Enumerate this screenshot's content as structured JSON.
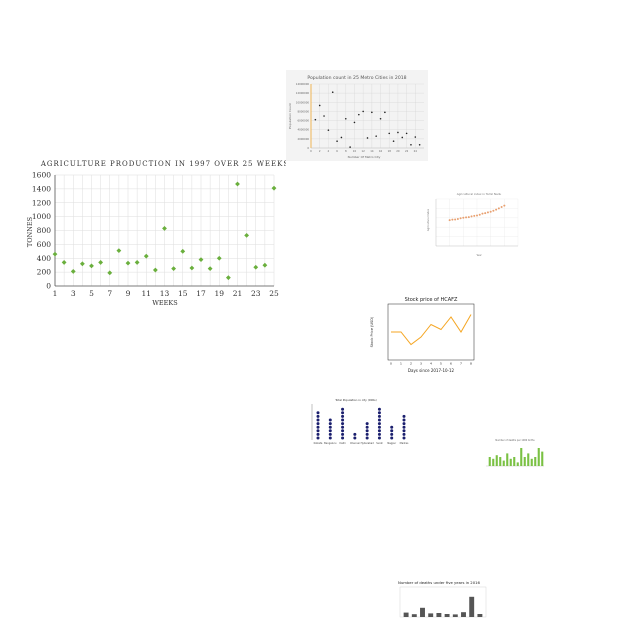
{
  "colors": {
    "agri_marker": "#6aaf3d",
    "population_axis": "#f0a830",
    "population_card": "#f2f2f2",
    "scatter_dots": "#e8a070",
    "stock_line": "#f5a623",
    "dot_plot": "#1b1f6e",
    "green_bars": "#7ac143",
    "gray_bars": "#555555"
  },
  "chart_data": [
    {
      "id": "agriculture",
      "type": "scatter",
      "title": "AGRICULTURE PRODUCTION IN 1997 OVER 25 WEEKS",
      "xlabel": "WEEKS",
      "ylabel": "TONNES",
      "xlim": [
        1,
        25
      ],
      "ylim": [
        0,
        1600
      ],
      "xticks": [
        1,
        3,
        5,
        7,
        9,
        11,
        13,
        15,
        17,
        19,
        21,
        23,
        25
      ],
      "yticks": [
        0,
        200,
        400,
        600,
        800,
        1000,
        1200,
        1400,
        1600
      ],
      "x": [
        1,
        2,
        3,
        4,
        5,
        6,
        7,
        8,
        9,
        10,
        11,
        12,
        13,
        14,
        15,
        16,
        17,
        18,
        19,
        20,
        21,
        22,
        23,
        24,
        25
      ],
      "y": [
        460,
        340,
        210,
        320,
        290,
        340,
        190,
        510,
        330,
        340,
        430,
        230,
        830,
        250,
        500,
        260,
        380,
        250,
        400,
        120,
        1470,
        730,
        270,
        300,
        1410
      ],
      "grid": true
    },
    {
      "id": "population",
      "type": "scatter",
      "title": "Population  count  in 25 Metro Cities in 2018",
      "xlabel": "Number Of Metro City",
      "ylabel": "Population Count",
      "xlim": [
        0,
        26
      ],
      "ylim": [
        0,
        14000000
      ],
      "xticks": [
        0,
        2,
        4,
        6,
        8,
        10,
        12,
        14,
        16,
        18,
        20,
        22,
        24
      ],
      "yticks": [
        0,
        2000000,
        4000000,
        6000000,
        8000000,
        10000000,
        12000000,
        14000000
      ],
      "x": [
        1,
        2,
        3,
        4,
        5,
        6,
        7,
        8,
        9,
        10,
        11,
        12,
        13,
        14,
        15,
        16,
        17,
        18,
        19,
        20,
        21,
        22,
        23,
        24,
        25
      ],
      "y": [
        6200000,
        9300000,
        7000000,
        3900000,
        12200000,
        1500000,
        2300000,
        6400000,
        200000,
        5600000,
        7300000,
        8000000,
        2200000,
        7800000,
        2600000,
        6400000,
        7800000,
        3200000,
        1500000,
        3400000,
        2300000,
        3200000,
        700000,
        2400000,
        700000
      ],
      "grid": true
    },
    {
      "id": "agri_growth",
      "type": "scatter",
      "title": "Agricultural index in Tamil Nadu",
      "xlabel": "Year",
      "ylabel": "Agricultural index",
      "xlim": [
        1990,
        2020
      ],
      "ylim": [
        0,
        200
      ],
      "x": [
        1995,
        1996,
        1997,
        1998,
        1999,
        2000,
        2001,
        2002,
        2003,
        2004,
        2005,
        2006,
        2007,
        2008,
        2009,
        2010,
        2011,
        2012,
        2013,
        2014,
        2015
      ],
      "y": [
        110,
        112,
        113,
        115,
        118,
        120,
        122,
        123,
        126,
        128,
        130,
        133,
        138,
        140,
        143,
        146,
        150,
        155,
        160,
        166,
        172
      ],
      "grid": true
    },
    {
      "id": "stock",
      "type": "line",
      "title": "Stock price of HCAFZ",
      "xlabel": "Days since 2017-10-12",
      "ylabel": "Stock Price (USD)",
      "xlim": [
        0,
        8
      ],
      "ylim": [
        22.9,
        23.1
      ],
      "x": [
        0,
        1,
        2,
        3,
        4,
        5,
        6,
        7,
        8
      ],
      "y": [
        23.0,
        23.0,
        22.95,
        22.98,
        23.03,
        23.01,
        23.06,
        23.0,
        23.07
      ],
      "grid": false
    },
    {
      "id": "dot_plot",
      "type": "scatter",
      "title": "Total Population in city (000s)",
      "categories": [
        "Kolkata",
        "Bengaluru",
        "Delhi",
        "Chennai",
        "Hyderabad",
        "Surat",
        "Nagpur",
        "Madras"
      ],
      "values": [
        8,
        6,
        9,
        2,
        5,
        9,
        4,
        7
      ],
      "grid": false
    },
    {
      "id": "green_bars",
      "type": "bar",
      "title": "Number of deaths per 1000 births",
      "categories": [
        "a",
        "b",
        "c",
        "d",
        "e",
        "f",
        "g",
        "h",
        "i",
        "j",
        "k",
        "l",
        "m",
        "n",
        "o",
        "p"
      ],
      "values": [
        5,
        4,
        6,
        5,
        3,
        7,
        4,
        5,
        2,
        10,
        5,
        7,
        4,
        5,
        10,
        8
      ],
      "grid": false
    },
    {
      "id": "deaths",
      "type": "bar",
      "title": "Number of deaths under five years in 2016",
      "categories": [
        "a",
        "b",
        "c",
        "d",
        "e",
        "f",
        "g",
        "h",
        "i",
        "j"
      ],
      "values": [
        220,
        140,
        460,
        180,
        200,
        150,
        130,
        240,
        1010,
        150
      ],
      "ylim": [
        0,
        1500
      ],
      "grid": false
    }
  ]
}
